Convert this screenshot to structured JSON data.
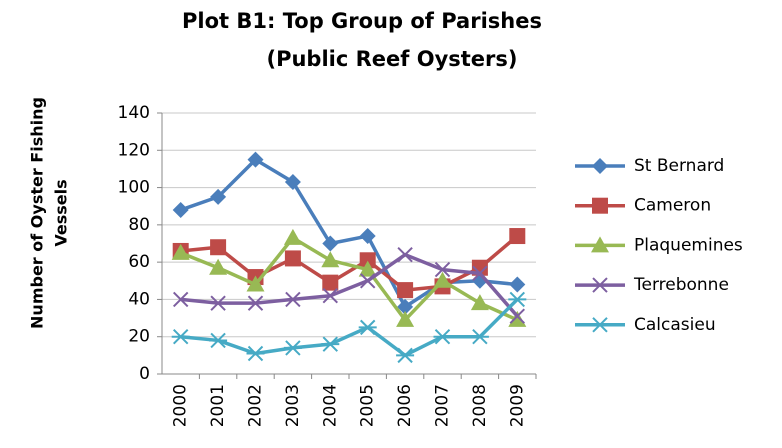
{
  "chart_data": {
    "type": "line",
    "title_lines": [
      "Plot B1: Top Group of Parishes",
      "(Public Reef Oysters)"
    ],
    "ylabel_lines": [
      "Number of Oyster Fishing",
      "Vessels"
    ],
    "categories": [
      "2000",
      "2001",
      "2002",
      "2003",
      "2004",
      "2005",
      "2006",
      "2007",
      "2008",
      "2009"
    ],
    "ylim": [
      0,
      140
    ],
    "yticks": [
      0,
      20,
      40,
      60,
      80,
      100,
      120,
      140
    ],
    "grid": true,
    "legend": "right",
    "series": [
      {
        "name": "St Bernard",
        "color": "#4a7ebb",
        "marker": "diamond",
        "values": [
          88,
          95,
          115,
          103,
          70,
          74,
          36,
          49,
          50,
          48
        ]
      },
      {
        "name": "Cameron",
        "color": "#be4b48",
        "marker": "square",
        "values": [
          66,
          68,
          52,
          62,
          49,
          61,
          45,
          47,
          57,
          74
        ]
      },
      {
        "name": "Plaquemines",
        "color": "#98b954",
        "marker": "triangle",
        "values": [
          65,
          57,
          48,
          73,
          61,
          56,
          29,
          50,
          38,
          29
        ]
      },
      {
        "name": "Terrebonne",
        "color": "#7d5fa0",
        "marker": "x",
        "values": [
          40,
          38,
          38,
          40,
          42,
          50,
          64,
          56,
          54,
          31
        ]
      },
      {
        "name": "Calcasieu",
        "color": "#46aac5",
        "marker": "star",
        "values": [
          20,
          18,
          11,
          14,
          16,
          25,
          10,
          20,
          20,
          40
        ]
      }
    ]
  }
}
